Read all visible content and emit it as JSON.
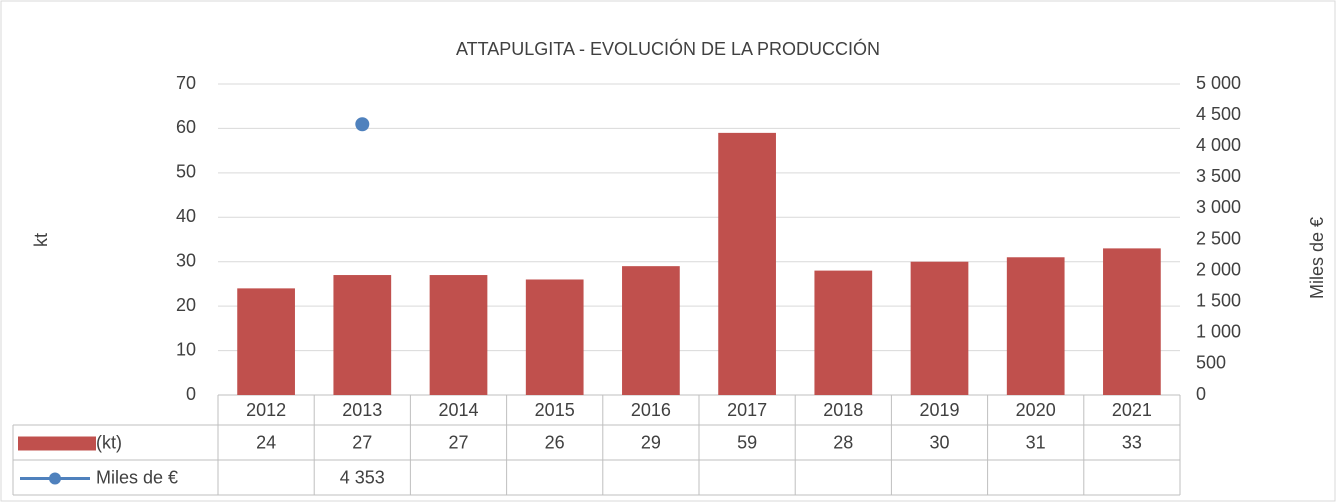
{
  "chart_data": {
    "type": "bar",
    "title": "ATTAPULGITA - EVOLUCIÓN DE LA PRODUCCIÓN",
    "ylabel": "kt",
    "y2label": "Miles de €",
    "categories": [
      "2012",
      "2013",
      "2014",
      "2015",
      "2016",
      "2017",
      "2018",
      "2019",
      "2020",
      "2021"
    ],
    "series": [
      {
        "name": "(kt)",
        "type": "bar",
        "color": "#c0504d",
        "values": [
          24,
          27,
          27,
          26,
          29,
          59,
          28,
          30,
          31,
          33
        ]
      },
      {
        "name": "Miles de €",
        "type": "line",
        "axis": "y2",
        "color": "#4f81bd",
        "values": [
          null,
          4353,
          null,
          null,
          null,
          null,
          null,
          null,
          null,
          null
        ],
        "value_labels": [
          null,
          "4 353",
          null,
          null,
          null,
          null,
          null,
          null,
          null,
          null
        ]
      }
    ],
    "ylim": [
      0,
      70
    ],
    "yticks": [
      0,
      10,
      20,
      30,
      40,
      50,
      60,
      70
    ],
    "y2lim": [
      0,
      5000
    ],
    "y2ticks": [
      0,
      500,
      {
        "value": 1000,
        "label": "1 000"
      },
      {
        "value": 1500,
        "label": "1 500"
      },
      {
        "value": 2000,
        "label": "2 000"
      },
      {
        "value": 2500,
        "label": "2 500"
      },
      {
        "value": 3000,
        "label": "3 000"
      },
      {
        "value": 3500,
        "label": "3 500"
      },
      {
        "value": 4000,
        "label": "4 000"
      },
      {
        "value": 4500,
        "label": "4 500"
      },
      {
        "value": 5000,
        "label": "5 000"
      }
    ],
    "grid": true,
    "legend": "table"
  }
}
